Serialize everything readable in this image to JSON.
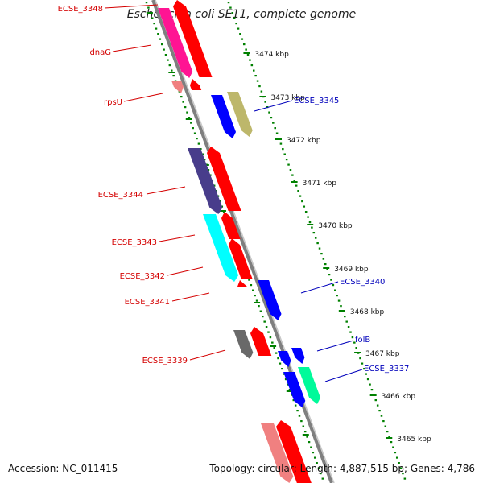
{
  "title": "Escherichia coli SE11, complete genome",
  "footer": {
    "accession": "Accession: NC_011415",
    "summary": "Topology: circular; Length: 4,887,515 bp; Genes: 4,786"
  },
  "colors": {
    "reverse_label": "#d40000",
    "forward_label": "#0000bb",
    "tick": "#008000",
    "backbone": "#8c8c8c",
    "strand_red": "#ff0000",
    "strand_blue": "#0000ff"
  },
  "kbp_labels": [
    "3474 kbp",
    "3473 kbp",
    "3472 kbp",
    "3471 kbp",
    "3470 kbp",
    "3469 kbp",
    "3468 kbp",
    "3467 kbp",
    "3466 kbp",
    "3465 kbp"
  ],
  "reverse_genes": [
    {
      "name": "ECSE_3348",
      "color": "#ff1493"
    },
    {
      "name": "dnaG",
      "color": "#ff1493"
    },
    {
      "name": "rpsU",
      "color": "#f08080"
    },
    {
      "name": "ECSE_3344",
      "color": "#483d8b"
    },
    {
      "name": "ECSE_3343",
      "color": "#00ffff"
    },
    {
      "name": "ECSE_3342",
      "color": "#00ffff"
    },
    {
      "name": "ECSE_3341",
      "color": "#ff0000"
    },
    {
      "name": "ECSE_3339",
      "color": "#696969"
    }
  ],
  "forward_genes": [
    {
      "name": "ECSE_3345",
      "color": "#bdb76b"
    },
    {
      "name": "ECSE_3340",
      "color": "#0000ff"
    },
    {
      "name": "folB",
      "color": "#0000ff"
    },
    {
      "name": "ECSE_3337",
      "color": "#00fa9a"
    }
  ]
}
